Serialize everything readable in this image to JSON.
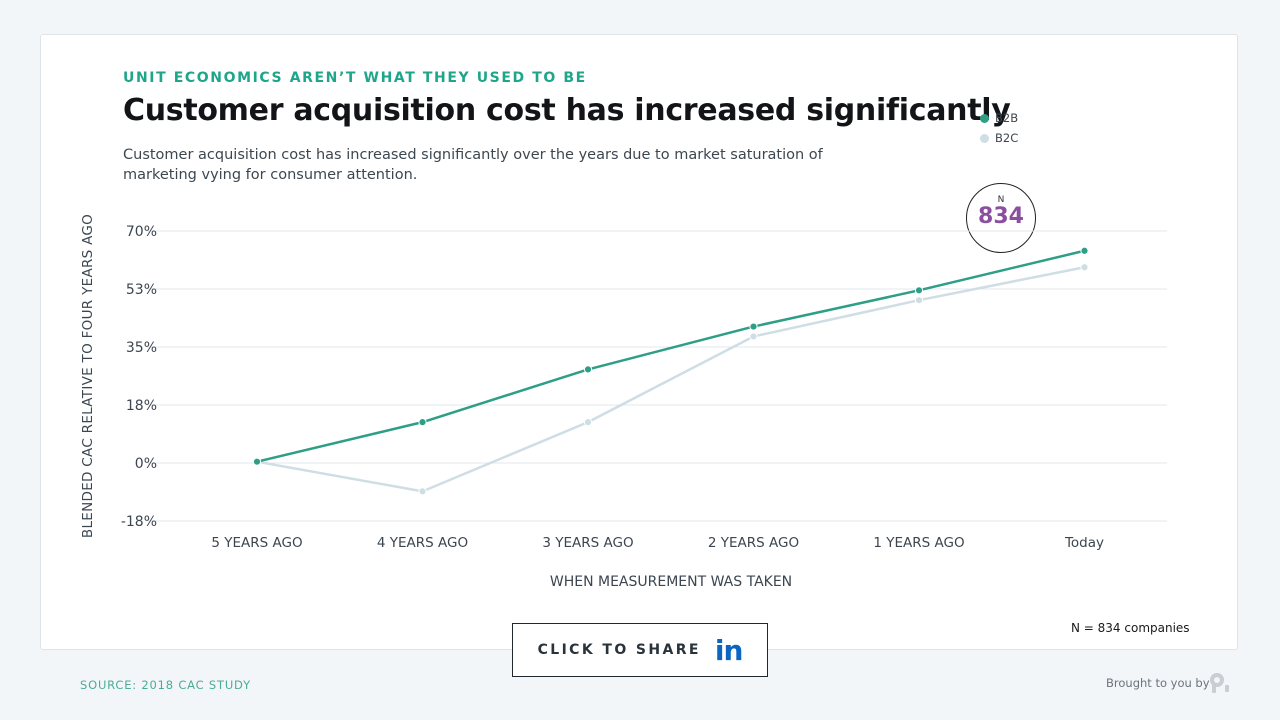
{
  "header": {
    "eyebrow": "UNIT ECONOMICS AREN’T WHAT THEY USED TO BE",
    "title": "Customer acquisition cost has increased significantly",
    "subtitle": "Customer acquisition cost has increased significantly over the years due to market saturation of marketing vying for consumer attention."
  },
  "badge": {
    "label": "N",
    "value": "834"
  },
  "footnote": "N = 834 companies",
  "share": {
    "label": "CLICK TO SHARE",
    "icon": "linkedin-icon",
    "icon_text": "in"
  },
  "footer": {
    "source": "SOURCE: 2018 CAC STUDY",
    "brought_by": "Brought to you by",
    "brand_icon": "profitwell-logo-icon"
  },
  "colors": {
    "accent": "#1fa58a",
    "b2b": "#2e9e86",
    "b2c": "#cfdde4",
    "badge_value": "#8a4f9e"
  },
  "chart_data": {
    "type": "line",
    "xlabel": "WHEN MEASUREMENT WAS TAKEN",
    "ylabel": "BLENDED CAC RELATIVE TO FOUR YEARS AGO",
    "categories": [
      "5 YEARS AGO",
      "4 YEARS AGO",
      "3 YEARS AGO",
      "2 YEARS AGO",
      "1 YEARS AGO",
      "Today"
    ],
    "yticks": [
      "70%",
      "53%",
      "35%",
      "18%",
      "0%",
      "-18%"
    ],
    "ylim": [
      -18,
      70
    ],
    "grid": true,
    "legend_position": "top-right",
    "series": [
      {
        "name": "B2B",
        "values": [
          0,
          12,
          28,
          41,
          52,
          64
        ]
      },
      {
        "name": "B2C",
        "values": [
          0,
          -9,
          12,
          38,
          49,
          59
        ]
      }
    ]
  }
}
